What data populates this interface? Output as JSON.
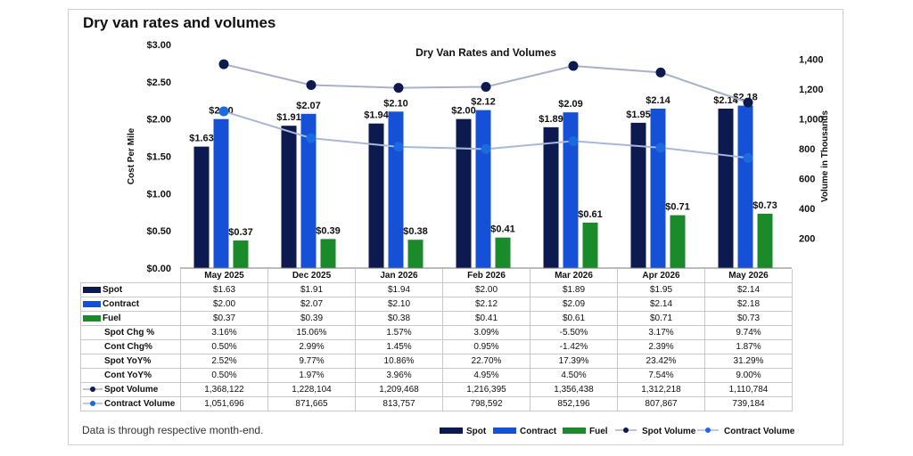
{
  "page": {
    "title": "Dry van rates and volumes",
    "footnote": "Data is through respective month-end."
  },
  "colors": {
    "spot": "#0d1a4f",
    "contract": "#1650d6",
    "fuel": "#1a8a2a",
    "spot_volume": "#a9b0c8",
    "contract_volume": "#a9b8d8",
    "spot_dot": "#0d1a4f",
    "contract_dot": "#1a6ae0"
  },
  "chart_data": {
    "type": "bar",
    "title": "Dry Van Rates and Volumes",
    "ylabel": "Cost Per Mile",
    "y2label": "Volume in Thousands",
    "ylim": [
      0,
      3
    ],
    "y2lim": [
      0,
      1500
    ],
    "yticks": [
      "$0.00",
      "$0.50",
      "$1.00",
      "$1.50",
      "$2.00",
      "$2.50",
      "$3.00"
    ],
    "y2ticks": [
      "200",
      "400",
      "600",
      "800",
      "1,000",
      "1,200",
      "1,400"
    ],
    "y2tick_values": [
      200,
      400,
      600,
      800,
      1000,
      1200,
      1400
    ],
    "categories": [
      "May 2025",
      "Dec 2025",
      "Jan 2026",
      "Feb 2026",
      "Mar 2026",
      "Apr 2026",
      "May 2026"
    ],
    "legend_position": "bottom",
    "series": [
      {
        "name": "Spot",
        "kind": "bar",
        "values": [
          1.63,
          1.91,
          1.94,
          2.0,
          1.89,
          1.95,
          2.14
        ],
        "labels": [
          "$1.63",
          "$1.91",
          "$1.94",
          "$2.00",
          "$1.89",
          "$1.95",
          "$2.14"
        ]
      },
      {
        "name": "Contract",
        "kind": "bar",
        "values": [
          2.0,
          2.07,
          2.1,
          2.12,
          2.09,
          2.14,
          2.18
        ],
        "labels": [
          "$2.00",
          "$2.07",
          "$2.10",
          "$2.12",
          "$2.09",
          "$2.14",
          "$2.18"
        ]
      },
      {
        "name": "Fuel",
        "kind": "bar",
        "values": [
          0.37,
          0.39,
          0.38,
          0.41,
          0.61,
          0.71,
          0.73
        ],
        "labels": [
          "$0.37",
          "$0.39",
          "$0.38",
          "$0.41",
          "$0.61",
          "$0.71",
          "$0.73"
        ]
      },
      {
        "name": "Spot Volume",
        "kind": "line",
        "axis": "right",
        "values": [
          1368.122,
          1228.104,
          1209.468,
          1216.395,
          1356.438,
          1312.218,
          1110.784
        ]
      },
      {
        "name": "Contract Volume",
        "kind": "line",
        "axis": "right",
        "values": [
          1051.696,
          871.665,
          813.757,
          798.592,
          852.196,
          807.867,
          739.184
        ]
      }
    ],
    "table": {
      "rows": [
        {
          "label": "Spot",
          "key": "spot",
          "values": [
            "$1.63",
            "$1.91",
            "$1.94",
            "$2.00",
            "$1.89",
            "$1.95",
            "$2.14"
          ]
        },
        {
          "label": "Contract",
          "key": "contract",
          "values": [
            "$2.00",
            "$2.07",
            "$2.10",
            "$2.12",
            "$2.09",
            "$2.14",
            "$2.18"
          ]
        },
        {
          "label": "Fuel",
          "key": "fuel",
          "values": [
            "$0.37",
            "$0.39",
            "$0.38",
            "$0.41",
            "$0.61",
            "$0.71",
            "$0.73"
          ]
        },
        {
          "label": "Spot Chg %",
          "key": "",
          "values": [
            "3.16%",
            "15.06%",
            "1.57%",
            "3.09%",
            "-5.50%",
            "3.17%",
            "9.74%"
          ]
        },
        {
          "label": "Cont Chg%",
          "key": "",
          "values": [
            "0.50%",
            "2.99%",
            "1.45%",
            "0.95%",
            "-1.42%",
            "2.39%",
            "1.87%"
          ]
        },
        {
          "label": "Spot YoY%",
          "key": "",
          "values": [
            "2.52%",
            "9.77%",
            "10.86%",
            "22.70%",
            "17.39%",
            "23.42%",
            "31.29%"
          ]
        },
        {
          "label": "Cont YoY%",
          "key": "",
          "values": [
            "0.50%",
            "1.97%",
            "3.96%",
            "4.95%",
            "4.50%",
            "7.54%",
            "9.00%"
          ]
        },
        {
          "label": "Spot Volume",
          "key": "spot_volume",
          "values": [
            "1,368,122",
            "1,228,104",
            "1,209,468",
            "1,216,395",
            "1,356,438",
            "1,312,218",
            "1,110,784"
          ]
        },
        {
          "label": "Contract Volume",
          "key": "contract_volume",
          "values": [
            "1,051,696",
            "871,665",
            "813,757",
            "798,592",
            "852,196",
            "807,867",
            "739,184"
          ]
        }
      ]
    }
  }
}
